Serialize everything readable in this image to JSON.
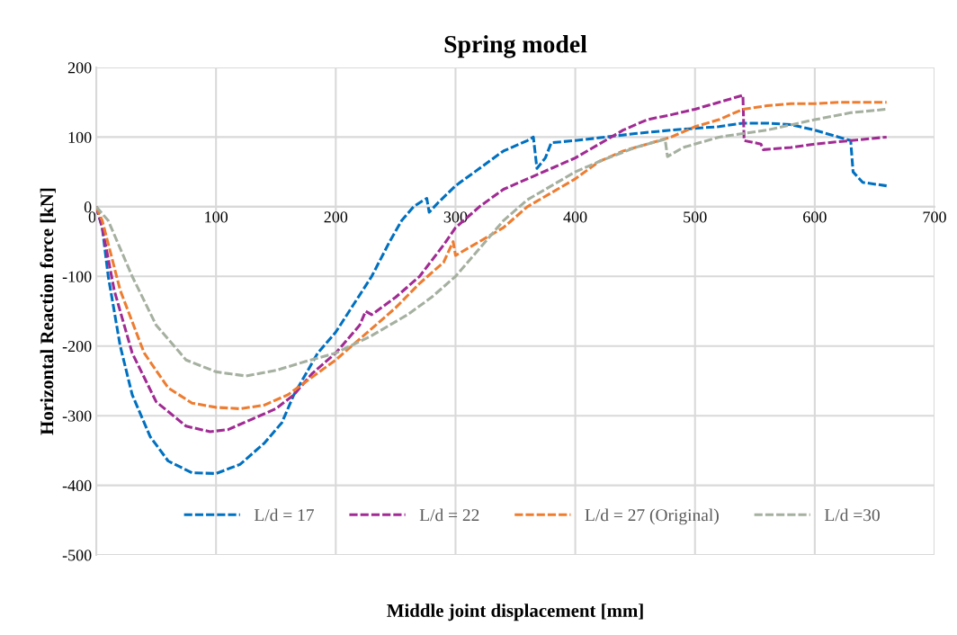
{
  "chart_data": {
    "type": "line",
    "title": "Spring model",
    "xlabel": "Middle joint displacement [mm]",
    "ylabel": "Horizontal Reaction force [kN]",
    "xlim": [
      0,
      700
    ],
    "xticks": [
      0,
      100,
      200,
      300,
      400,
      500,
      600,
      700
    ],
    "ylim": [
      -500,
      200
    ],
    "yticks": [
      -500,
      -400,
      -300,
      -200,
      -100,
      0,
      100,
      200
    ],
    "grid": true,
    "legend": "bottom",
    "line_style": "dashed",
    "marker": "none",
    "series": [
      {
        "name": "L/d = 17",
        "color": "#0070c0",
        "x": [
          0,
          5,
          10,
          20,
          30,
          45,
          60,
          80,
          100,
          120,
          140,
          155,
          165,
          175,
          185,
          200,
          215,
          230,
          245,
          255,
          265,
          272,
          276,
          278,
          285,
          300,
          320,
          340,
          360,
          365,
          368,
          375,
          380,
          400,
          450,
          480,
          520,
          540,
          560,
          580,
          600,
          620,
          630,
          632,
          640,
          660
        ],
        "values": [
          0,
          -30,
          -100,
          -200,
          -270,
          -330,
          -365,
          -382,
          -383,
          -370,
          -340,
          -310,
          -270,
          -240,
          -210,
          -180,
          -140,
          -100,
          -50,
          -20,
          0,
          8,
          12,
          -8,
          5,
          30,
          55,
          80,
          95,
          100,
          55,
          70,
          92,
          95,
          105,
          110,
          115,
          120,
          120,
          118,
          110,
          100,
          95,
          50,
          35,
          30
        ]
      },
      {
        "name": "L/d = 22",
        "color": "#a02b93",
        "x": [
          0,
          5,
          15,
          30,
          50,
          75,
          95,
          110,
          130,
          150,
          165,
          180,
          200,
          220,
          225,
          230,
          250,
          270,
          290,
          300,
          320,
          340,
          360,
          380,
          400,
          420,
          440,
          460,
          480,
          500,
          520,
          540,
          541,
          555,
          557,
          580,
          600,
          630,
          660
        ],
        "values": [
          0,
          -30,
          -120,
          -210,
          -280,
          -315,
          -323,
          -320,
          -305,
          -290,
          -270,
          -240,
          -210,
          -170,
          -150,
          -155,
          -130,
          -100,
          -55,
          -30,
          0,
          25,
          40,
          55,
          70,
          90,
          110,
          125,
          132,
          140,
          150,
          160,
          95,
          90,
          82,
          85,
          90,
          95,
          100
        ]
      },
      {
        "name": "L/d = 27 (Original)",
        "color": "#ed7d31",
        "x": [
          0,
          5,
          20,
          40,
          60,
          80,
          100,
          120,
          140,
          160,
          180,
          200,
          220,
          250,
          270,
          290,
          298,
          300,
          320,
          340,
          360,
          380,
          400,
          420,
          440,
          460,
          480,
          500,
          520,
          540,
          560,
          580,
          600,
          620,
          660
        ],
        "values": [
          0,
          -20,
          -120,
          -210,
          -260,
          -282,
          -288,
          -290,
          -285,
          -270,
          -245,
          -220,
          -190,
          -145,
          -110,
          -80,
          -50,
          -70,
          -50,
          -30,
          0,
          20,
          40,
          65,
          80,
          90,
          100,
          115,
          125,
          140,
          145,
          148,
          148,
          150,
          150
        ]
      },
      {
        "name": "L/d =30",
        "color": "#a5b0a0",
        "x": [
          0,
          10,
          30,
          50,
          75,
          100,
          125,
          150,
          175,
          200,
          230,
          260,
          280,
          300,
          320,
          340,
          360,
          380,
          400,
          420,
          450,
          475,
          477,
          490,
          520,
          560,
          600,
          630,
          660
        ],
        "values": [
          0,
          -20,
          -100,
          -170,
          -220,
          -237,
          -243,
          -235,
          -222,
          -210,
          -185,
          -155,
          -130,
          -100,
          -60,
          -20,
          10,
          30,
          50,
          65,
          85,
          97,
          72,
          85,
          100,
          110,
          125,
          135,
          140
        ]
      }
    ]
  }
}
